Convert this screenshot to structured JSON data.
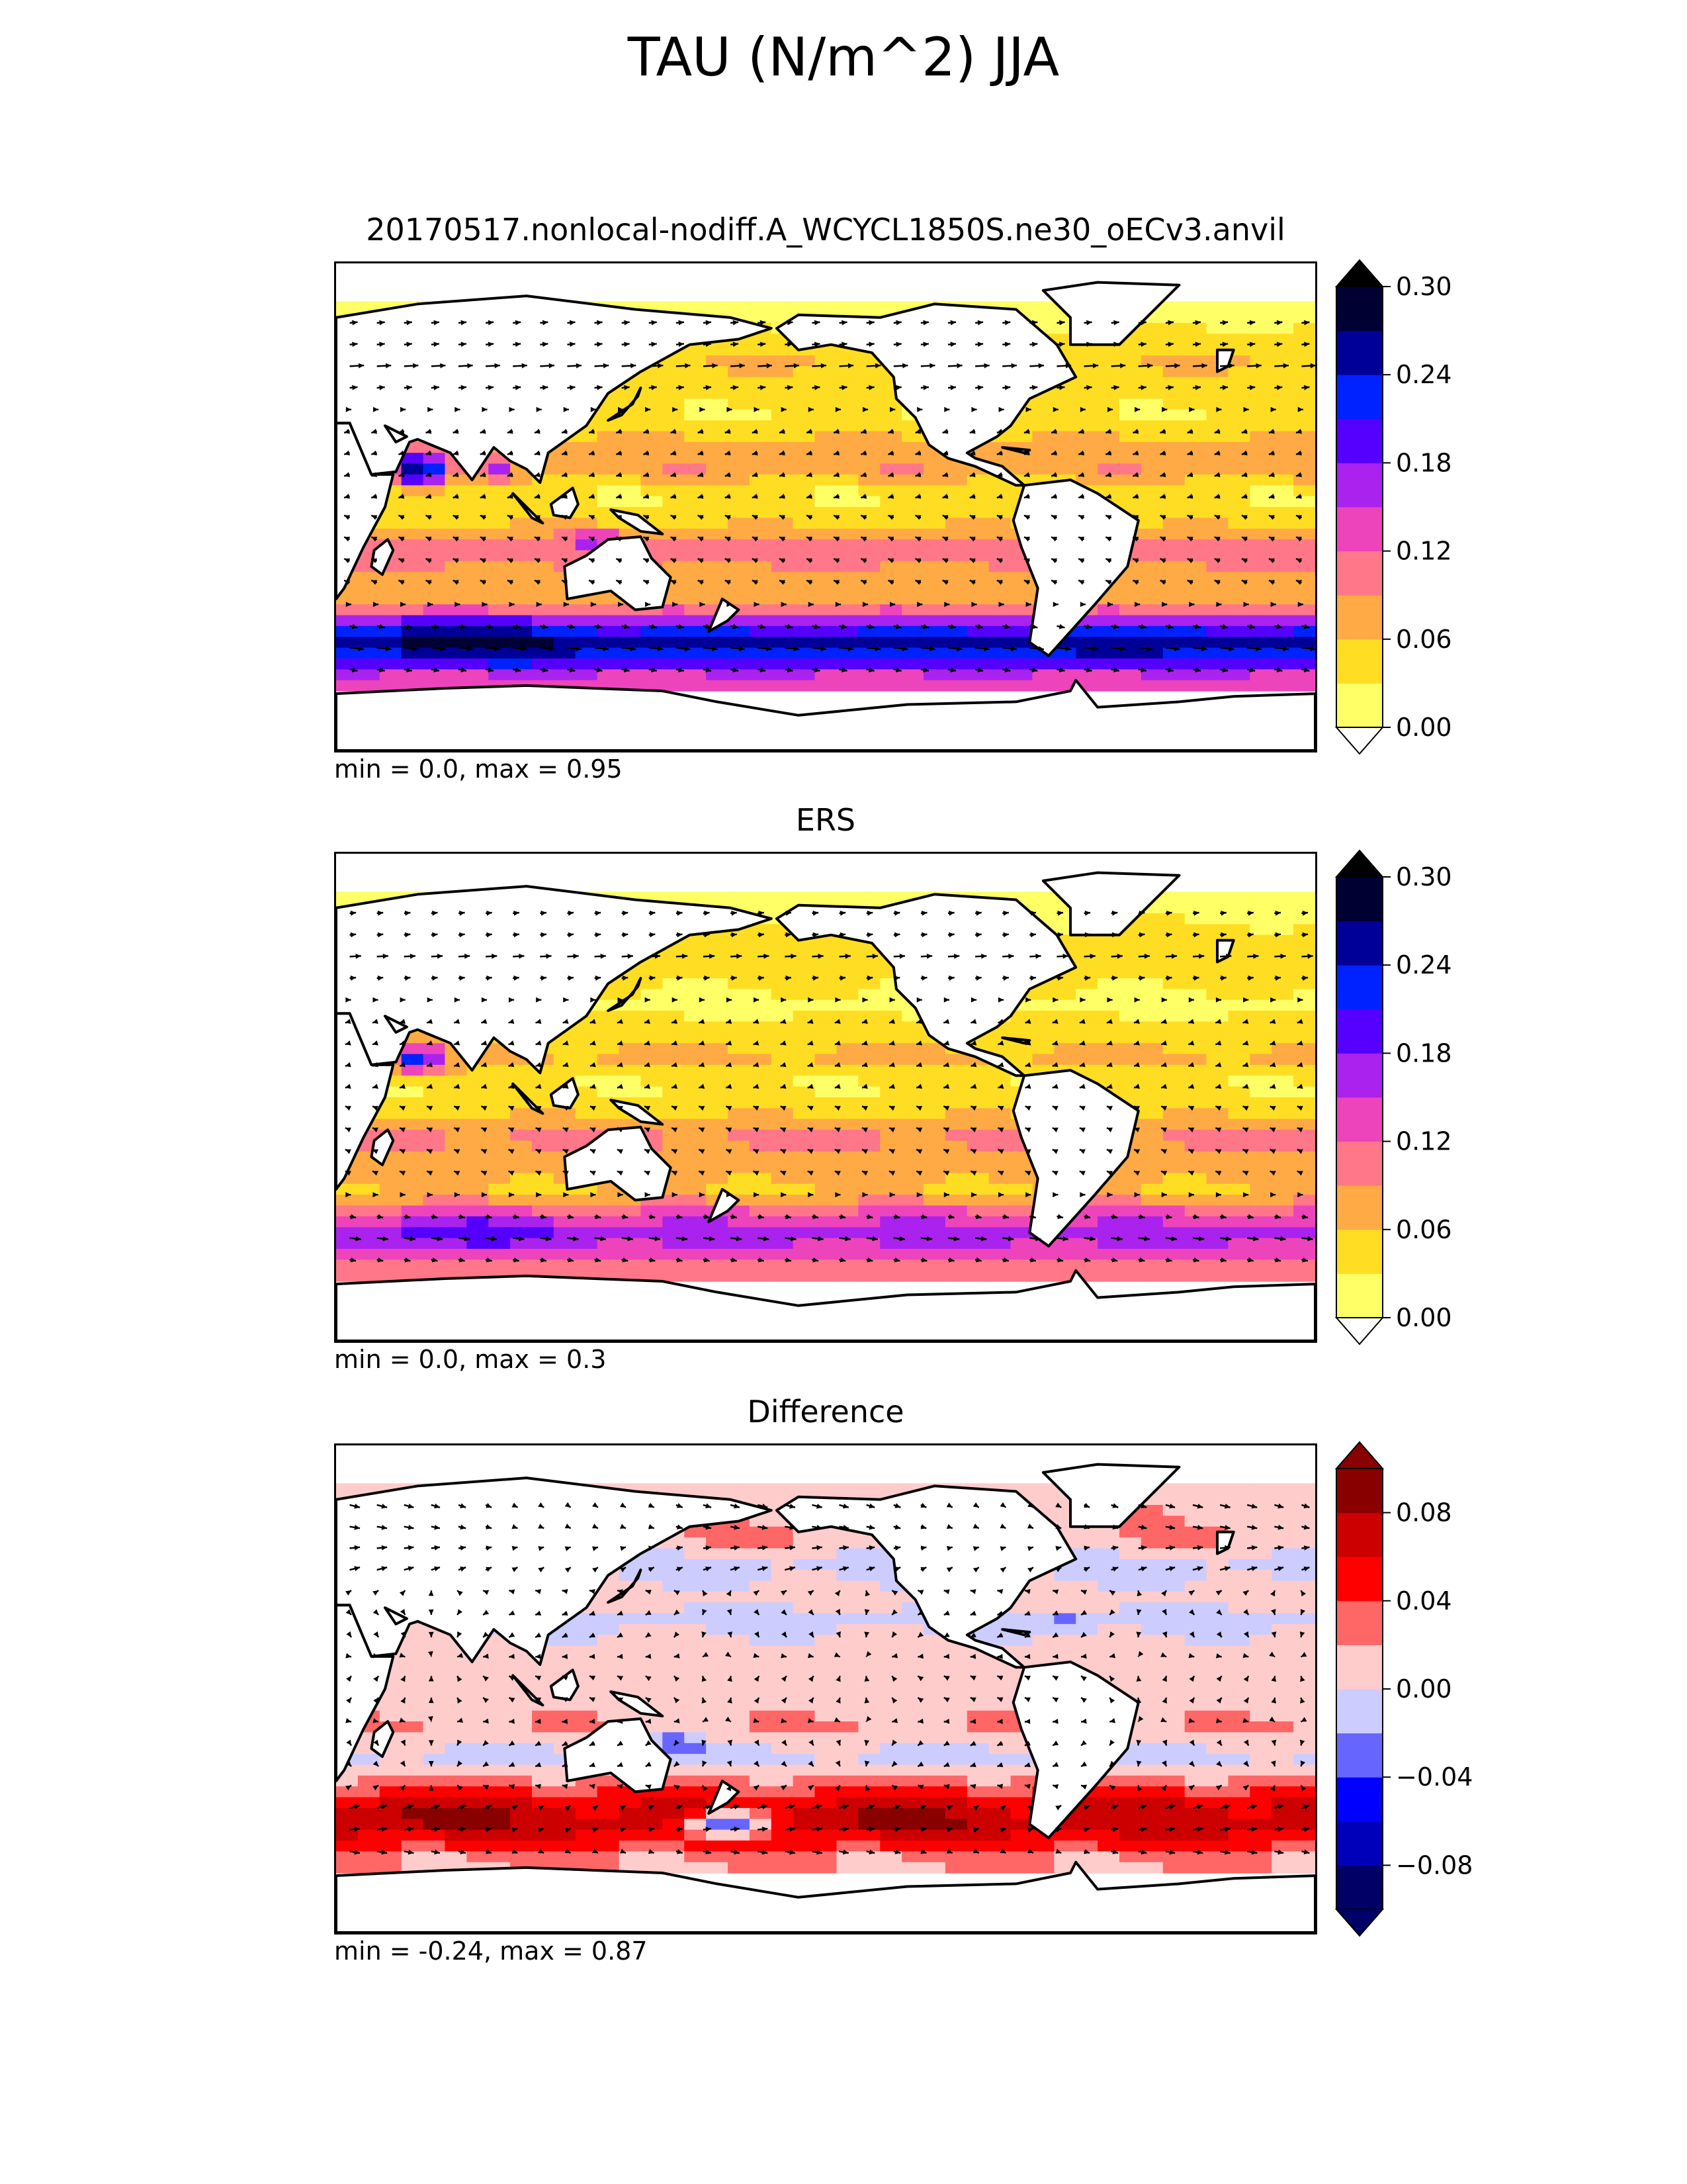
{
  "figure": {
    "title": "TAU (N/m^2) JJA"
  },
  "chart_data": [
    {
      "type": "heatmap",
      "subtype": "filled-contour map with wind-stress vectors",
      "title": "20170517.nonlocal-nodiff.A_WCYCL1850S.ne30_oECv3.anvil",
      "stats": "min = 0.0, max = 0.95",
      "colorbar": {
        "levels": [
          0.0,
          0.03,
          0.06,
          0.09,
          0.12,
          0.15,
          0.18,
          0.21,
          0.24,
          0.27,
          0.3
        ],
        "tick_labels": [
          "0.00",
          "0.06",
          "0.12",
          "0.18",
          "0.24",
          "0.30"
        ],
        "colors": [
          "#ffff66",
          "#ffdd22",
          "#ffaa44",
          "#ff7788",
          "#ee44bb",
          "#aa22ee",
          "#5500ff",
          "#0022ff",
          "#000099",
          "#000033"
        ],
        "extend": "both",
        "over_color": "#000000",
        "under_color": "#ffffff"
      },
      "bands": [
        {
          "lat": 70,
          "value": 0.02
        },
        {
          "lat": 55,
          "value": 0.06
        },
        {
          "lat": 45,
          "value": 0.05
        },
        {
          "lat": 35,
          "value": 0.03
        },
        {
          "lat": 25,
          "value": 0.06
        },
        {
          "lat": 15,
          "value": 0.09
        },
        {
          "lat": 5,
          "value": 0.03
        },
        {
          "lat": -5,
          "value": 0.05
        },
        {
          "lat": -15,
          "value": 0.11
        },
        {
          "lat": -25,
          "value": 0.08
        },
        {
          "lat": -35,
          "value": 0.07
        },
        {
          "lat": -42,
          "value": 0.17
        },
        {
          "lat": -50,
          "value": 0.25
        },
        {
          "lat": -57,
          "value": 0.2
        },
        {
          "lat": -63,
          "value": 0.14
        }
      ],
      "hotspots": [
        {
          "lon": 60,
          "lat": 14,
          "value": 0.27,
          "rlon": 10,
          "rlat": 6
        },
        {
          "lon": 88,
          "lat": 14,
          "value": 0.16,
          "rlon": 5,
          "rlat": 4
        },
        {
          "lon": 80,
          "lat": -50,
          "value": 0.29,
          "rlon": 35,
          "rlat": 6
        },
        {
          "lon": 125,
          "lat": -12,
          "value": 0.2,
          "rlon": 6,
          "rlat": 3
        },
        {
          "lon": 310,
          "lat": -52,
          "value": 0.26,
          "rlon": 25,
          "rlat": 5
        }
      ]
    },
    {
      "type": "heatmap",
      "subtype": "filled-contour map with wind-stress vectors",
      "title": "ERS",
      "stats": "min = 0.0, max = 0.3",
      "colorbar": {
        "levels": [
          0.0,
          0.03,
          0.06,
          0.09,
          0.12,
          0.15,
          0.18,
          0.21,
          0.24,
          0.27,
          0.3
        ],
        "tick_labels": [
          "0.00",
          "0.06",
          "0.12",
          "0.18",
          "0.24",
          "0.30"
        ],
        "colors": [
          "#ffff66",
          "#ffdd22",
          "#ffaa44",
          "#ff7788",
          "#ee44bb",
          "#aa22ee",
          "#5500ff",
          "#0022ff",
          "#000099",
          "#000033"
        ],
        "extend": "both",
        "over_color": "#000000",
        "under_color": "#ffffff"
      },
      "bands": [
        {
          "lat": 70,
          "value": 0.02
        },
        {
          "lat": 55,
          "value": 0.05
        },
        {
          "lat": 45,
          "value": 0.04
        },
        {
          "lat": 35,
          "value": 0.02
        },
        {
          "lat": 25,
          "value": 0.04
        },
        {
          "lat": 15,
          "value": 0.07
        },
        {
          "lat": 5,
          "value": 0.03
        },
        {
          "lat": -5,
          "value": 0.05
        },
        {
          "lat": -15,
          "value": 0.1
        },
        {
          "lat": -25,
          "value": 0.07
        },
        {
          "lat": -35,
          "value": 0.06
        },
        {
          "lat": -42,
          "value": 0.12
        },
        {
          "lat": -50,
          "value": 0.17
        },
        {
          "lat": -57,
          "value": 0.14
        },
        {
          "lat": -63,
          "value": 0.1
        }
      ],
      "hotspots": [
        {
          "lon": 60,
          "lat": 14,
          "value": 0.22,
          "rlon": 9,
          "rlat": 5
        },
        {
          "lon": 80,
          "lat": -50,
          "value": 0.2,
          "rlon": 30,
          "rlat": 5
        }
      ]
    },
    {
      "type": "heatmap",
      "subtype": "filled-contour map with wind-stress vectors",
      "title": "Difference",
      "stats": "min = -0.24, max = 0.87",
      "colorbar": {
        "levels": [
          -0.1,
          -0.08,
          -0.06,
          -0.04,
          -0.02,
          0.0,
          0.02,
          0.04,
          0.06,
          0.08,
          0.1
        ],
        "tick_labels": [
          "−0.08",
          "−0.04",
          "0.00",
          "0.04",
          "0.08"
        ],
        "tick_values": [
          -0.08,
          -0.04,
          0.0,
          0.04,
          0.08
        ],
        "colors": [
          "#000066",
          "#0000bb",
          "#0000ff",
          "#6666ff",
          "#ccccff",
          "#ffcccc",
          "#ff6666",
          "#ff0000",
          "#cc0000",
          "#880000"
        ],
        "extend": "both",
        "over_color": "#880000",
        "under_color": "#000066"
      },
      "bands": [
        {
          "lat": 70,
          "value": 0.01
        },
        {
          "lat": 55,
          "value": 0.02
        },
        {
          "lat": 45,
          "value": -0.01
        },
        {
          "lat": 35,
          "value": 0.01
        },
        {
          "lat": 25,
          "value": -0.01
        },
        {
          "lat": 15,
          "value": 0.01
        },
        {
          "lat": 5,
          "value": 0.01
        },
        {
          "lat": -5,
          "value": 0.01
        },
        {
          "lat": -15,
          "value": 0.02
        },
        {
          "lat": -25,
          "value": -0.01
        },
        {
          "lat": -35,
          "value": 0.03
        },
        {
          "lat": -42,
          "value": 0.06
        },
        {
          "lat": -50,
          "value": 0.07
        },
        {
          "lat": -57,
          "value": 0.05
        },
        {
          "lat": -63,
          "value": 0.02
        }
      ],
      "hotspots": [
        {
          "lon": 175,
          "lat": -50,
          "value": -0.05,
          "rlon": 15,
          "rlat": 5
        },
        {
          "lon": 300,
          "lat": 25,
          "value": -0.05,
          "rlon": 6,
          "rlat": 3
        },
        {
          "lon": 155,
          "lat": -20,
          "value": -0.05,
          "rlon": 8,
          "rlat": 3
        },
        {
          "lon": 230,
          "lat": -48,
          "value": 0.09,
          "rlon": 25,
          "rlat": 5
        },
        {
          "lon": 60,
          "lat": -47,
          "value": 0.09,
          "rlon": 30,
          "rlat": 5
        }
      ]
    }
  ]
}
